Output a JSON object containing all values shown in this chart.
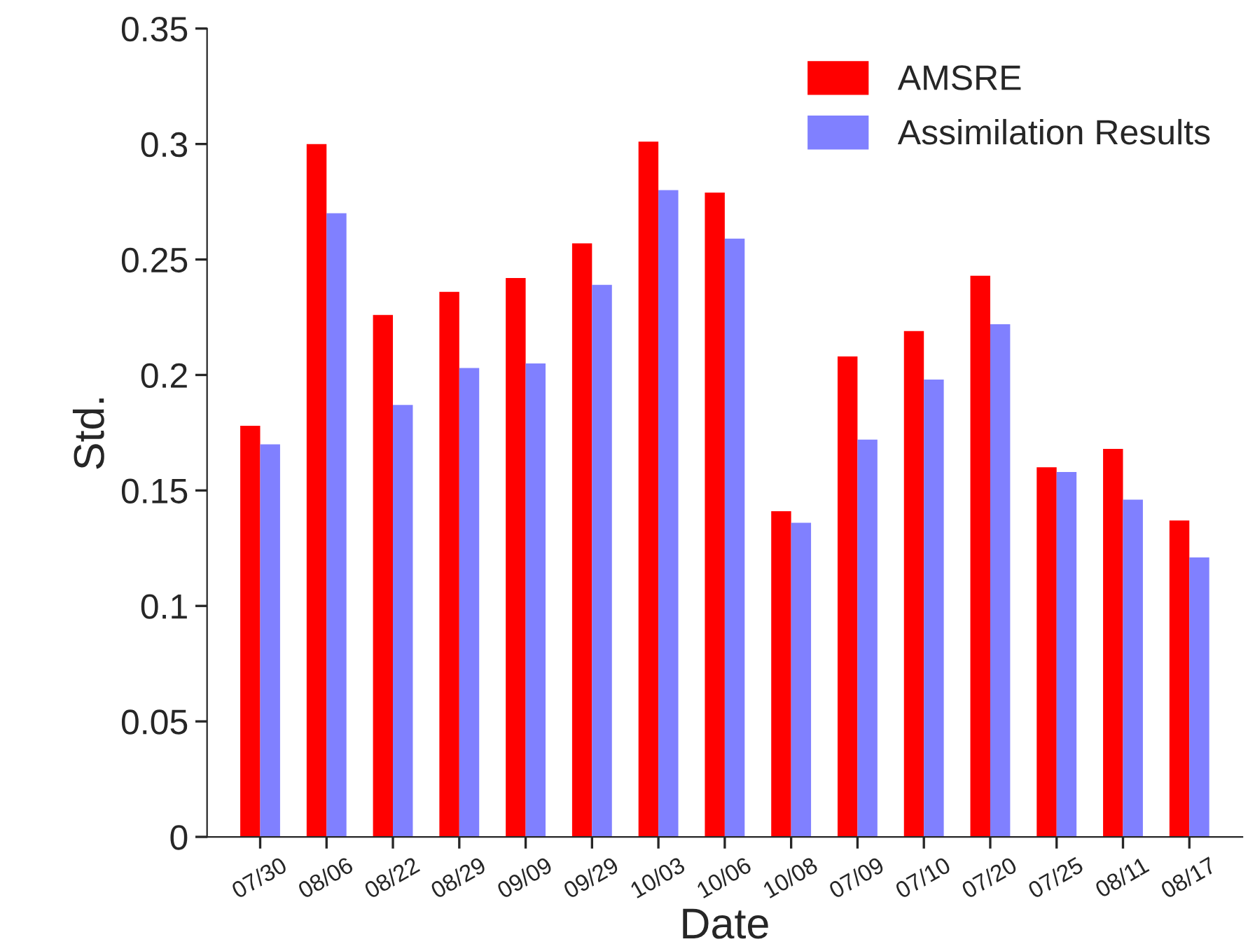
{
  "chart_data": {
    "type": "bar",
    "xlabel": "Date",
    "ylabel": "Std.",
    "categories": [
      "07/30",
      "08/06",
      "08/22",
      "08/29",
      "09/09",
      "09/29",
      "10/03",
      "10/06",
      "10/08",
      "07/09",
      "07/10",
      "07/20",
      "07/25",
      "08/11",
      "08/17"
    ],
    "series": [
      {
        "name": "AMSRE",
        "color": "#ff0000",
        "values": [
          0.178,
          0.3,
          0.226,
          0.236,
          0.242,
          0.257,
          0.301,
          0.279,
          0.141,
          0.208,
          0.219,
          0.243,
          0.16,
          0.168,
          0.137
        ]
      },
      {
        "name": "Assimilation Results",
        "color": "#8080ff",
        "values": [
          0.17,
          0.27,
          0.187,
          0.203,
          0.205,
          0.239,
          0.28,
          0.259,
          0.136,
          0.172,
          0.198,
          0.222,
          0.158,
          0.146,
          0.121
        ]
      }
    ],
    "ylim": [
      0,
      0.35
    ],
    "yticks": [
      0,
      0.05,
      0.1,
      0.15,
      0.2,
      0.25,
      0.3,
      0.35
    ],
    "grid": false,
    "legend": "top right"
  }
}
